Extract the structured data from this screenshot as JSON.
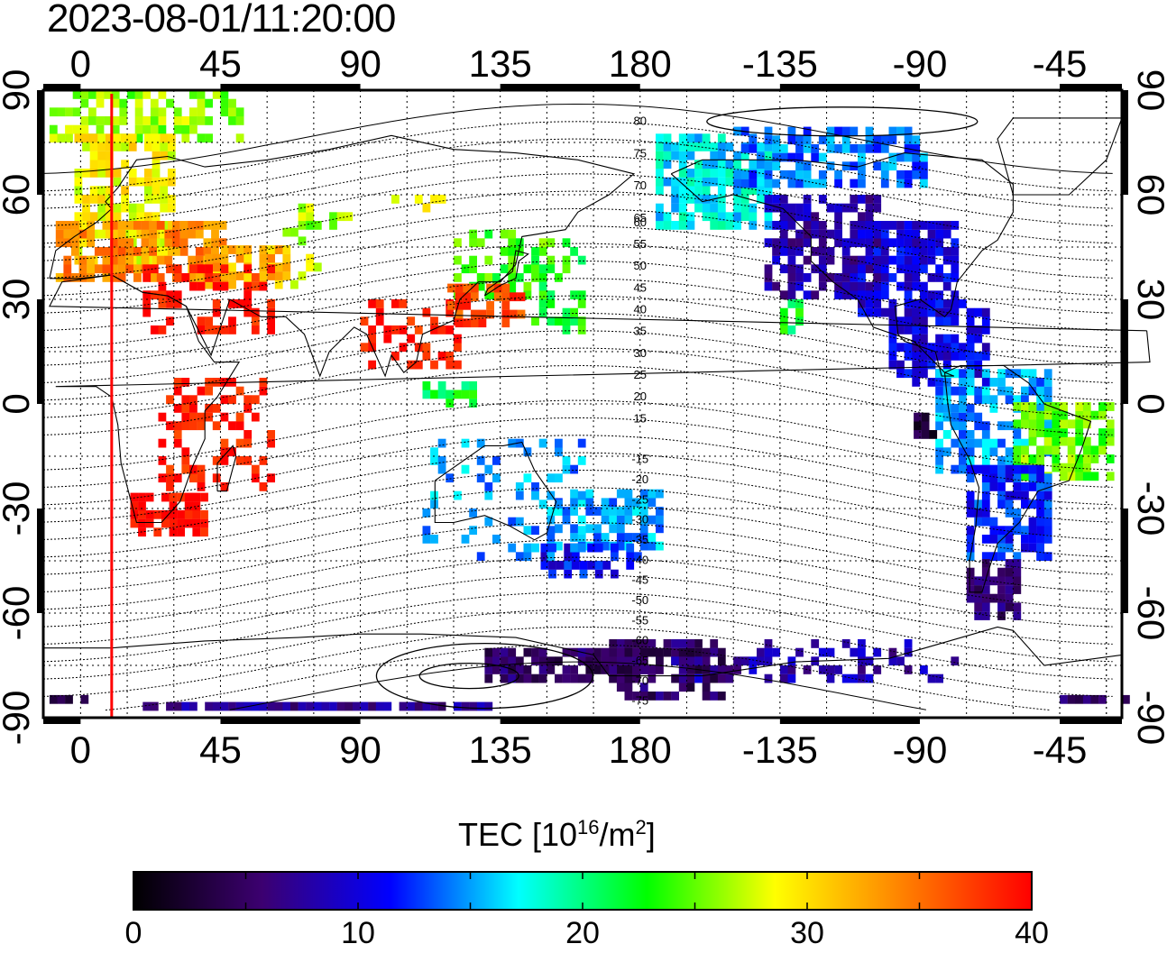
{
  "timestamp": "2023-08-01/11:20:00",
  "map": {
    "lon_ticks_top": [
      "0",
      "45",
      "90",
      "135",
      "180",
      "-135",
      "-90",
      "-45"
    ],
    "lon_ticks_bottom": [
      "0",
      "45",
      "90",
      "135",
      "180",
      "-135",
      "-90",
      "-45"
    ],
    "lat_ticks_left": [
      "90",
      "60",
      "30",
      "0",
      "-30",
      "-60",
      "-90"
    ],
    "lat_ticks_right": [
      "90",
      "60",
      "30",
      "0",
      "-30",
      "-60",
      "-90"
    ],
    "lon_range": [
      -12,
      335
    ],
    "lat_range": [
      -90,
      90
    ],
    "subsolar_meridian_lon": 10,
    "mlat_labels_north": [
      "80",
      "75",
      "70",
      "65",
      "60",
      "55",
      "50",
      "45",
      "40",
      "35",
      "30",
      "25",
      "20",
      "15"
    ],
    "mlat_labels_south": [
      "-15",
      "-20",
      "-25",
      "-30",
      "-35",
      "-40",
      "-45",
      "-50",
      "-55",
      "-60",
      "-65",
      "-70",
      "-75"
    ],
    "colors": {
      "meridian_line": "#ff0000",
      "frame": "#000000"
    }
  },
  "colorbar": {
    "title_main": "TEC  [10",
    "title_exp1": "16",
    "title_mid": "/m",
    "title_exp2": "2",
    "title_end": "]",
    "min": 0,
    "max": 40,
    "tick_labels": [
      "0",
      "10",
      "20",
      "30",
      "40"
    ],
    "gradient_stops": [
      "#000000",
      "#3c0070",
      "#0000ff",
      "#00ffff",
      "#00ff00",
      "#ffff00",
      "#ff8000",
      "#ff0000"
    ]
  }
}
